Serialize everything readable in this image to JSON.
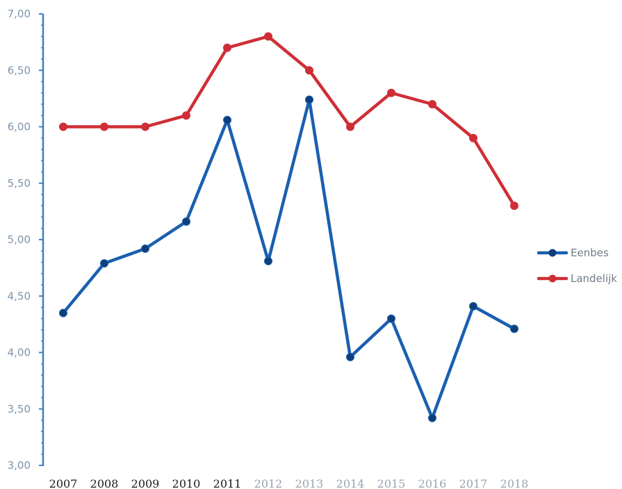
{
  "chart_data": {
    "type": "line",
    "title": "",
    "xlabel": "",
    "ylabel": "",
    "categories": [
      "2007",
      "2008",
      "2009",
      "2010",
      "2011",
      "2012",
      "2013",
      "2014",
      "2015",
      "2016",
      "2017",
      "2018"
    ],
    "y_ticks": [
      "3,00",
      "3,50",
      "4,00",
      "4,50",
      "5,00",
      "5,50",
      "6,00",
      "6,50",
      "7,00"
    ],
    "ylim": [
      3.0,
      7.0
    ],
    "grid": false,
    "legend_position": "right",
    "series": [
      {
        "name": "Eenbes",
        "color": "#1a5fb0",
        "marker_color": "#0f3f7a",
        "values": [
          4.35,
          4.79,
          4.92,
          5.16,
          6.06,
          4.81,
          6.24,
          3.96,
          4.3,
          3.42,
          4.41,
          4.21
        ]
      },
      {
        "name": "Landelijk",
        "color": "#cf2e36",
        "marker_color": "#cf2e36",
        "values": [
          6.0,
          6.0,
          6.0,
          6.1,
          6.7,
          6.8,
          6.5,
          6.0,
          6.3,
          6.2,
          5.9,
          5.3
        ]
      }
    ],
    "colors": {
      "axis": "#3f7fc4",
      "tick_dark": "#1a1a1a",
      "tick_light": "#9aa3ad"
    },
    "x_tick_dark_count": 5
  }
}
